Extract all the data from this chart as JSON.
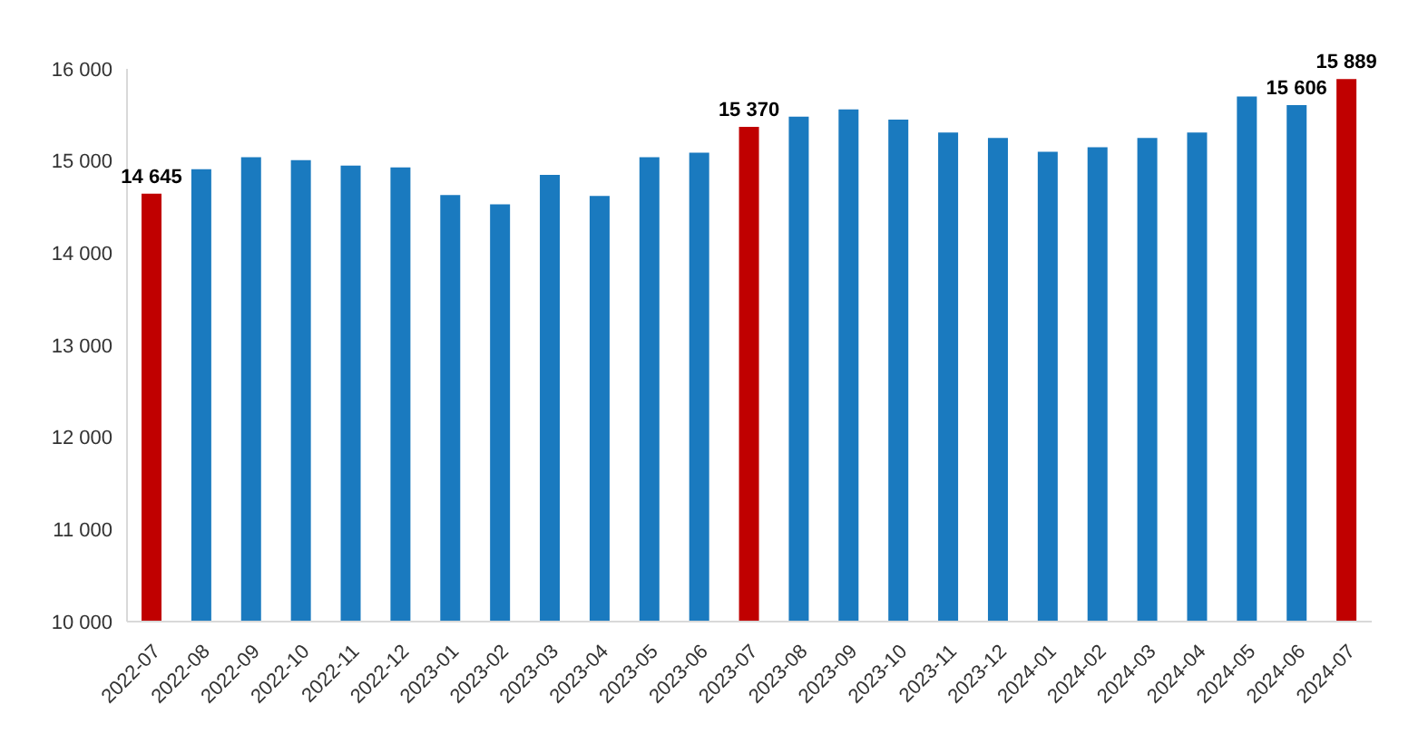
{
  "chart_data": {
    "type": "bar",
    "categories": [
      "2022-07",
      "2022-08",
      "2022-09",
      "2022-10",
      "2022-11",
      "2022-12",
      "2023-01",
      "2023-02",
      "2023-03",
      "2023-04",
      "2023-05",
      "2023-06",
      "2023-07",
      "2023-08",
      "2023-09",
      "2023-10",
      "2023-11",
      "2023-12",
      "2024-01",
      "2024-02",
      "2024-03",
      "2024-04",
      "2024-05",
      "2024-06",
      "2024-07"
    ],
    "values": [
      14645,
      14910,
      15040,
      15010,
      14950,
      14930,
      14630,
      14530,
      14850,
      14620,
      15040,
      15090,
      15370,
      15480,
      15560,
      15450,
      15310,
      15250,
      15100,
      15150,
      15250,
      15310,
      15700,
      15606,
      15889
    ],
    "colors": [
      "#c00000",
      "#1a7abf",
      "#1a7abf",
      "#1a7abf",
      "#1a7abf",
      "#1a7abf",
      "#1a7abf",
      "#1a7abf",
      "#1a7abf",
      "#1a7abf",
      "#1a7abf",
      "#1a7abf",
      "#c00000",
      "#1a7abf",
      "#1a7abf",
      "#1a7abf",
      "#1a7abf",
      "#1a7abf",
      "#1a7abf",
      "#1a7abf",
      "#1a7abf",
      "#1a7abf",
      "#1a7abf",
      "#1a7abf",
      "#c00000"
    ],
    "value_labels": [
      "14 645",
      null,
      null,
      null,
      null,
      null,
      null,
      null,
      null,
      null,
      null,
      null,
      "15 370",
      null,
      null,
      null,
      null,
      null,
      null,
      null,
      null,
      null,
      null,
      "15 606",
      "15 889"
    ],
    "ylim": [
      10000,
      16000
    ],
    "yticks": [
      {
        "value": 10000,
        "label": "10 000"
      },
      {
        "value": 11000,
        "label": "11 000"
      },
      {
        "value": 12000,
        "label": "12 000"
      },
      {
        "value": 13000,
        "label": "13 000"
      },
      {
        "value": 14000,
        "label": "14 000"
      },
      {
        "value": 15000,
        "label": "15 000"
      },
      {
        "value": 16000,
        "label": "16 000"
      }
    ],
    "grid": false,
    "legend": false
  }
}
